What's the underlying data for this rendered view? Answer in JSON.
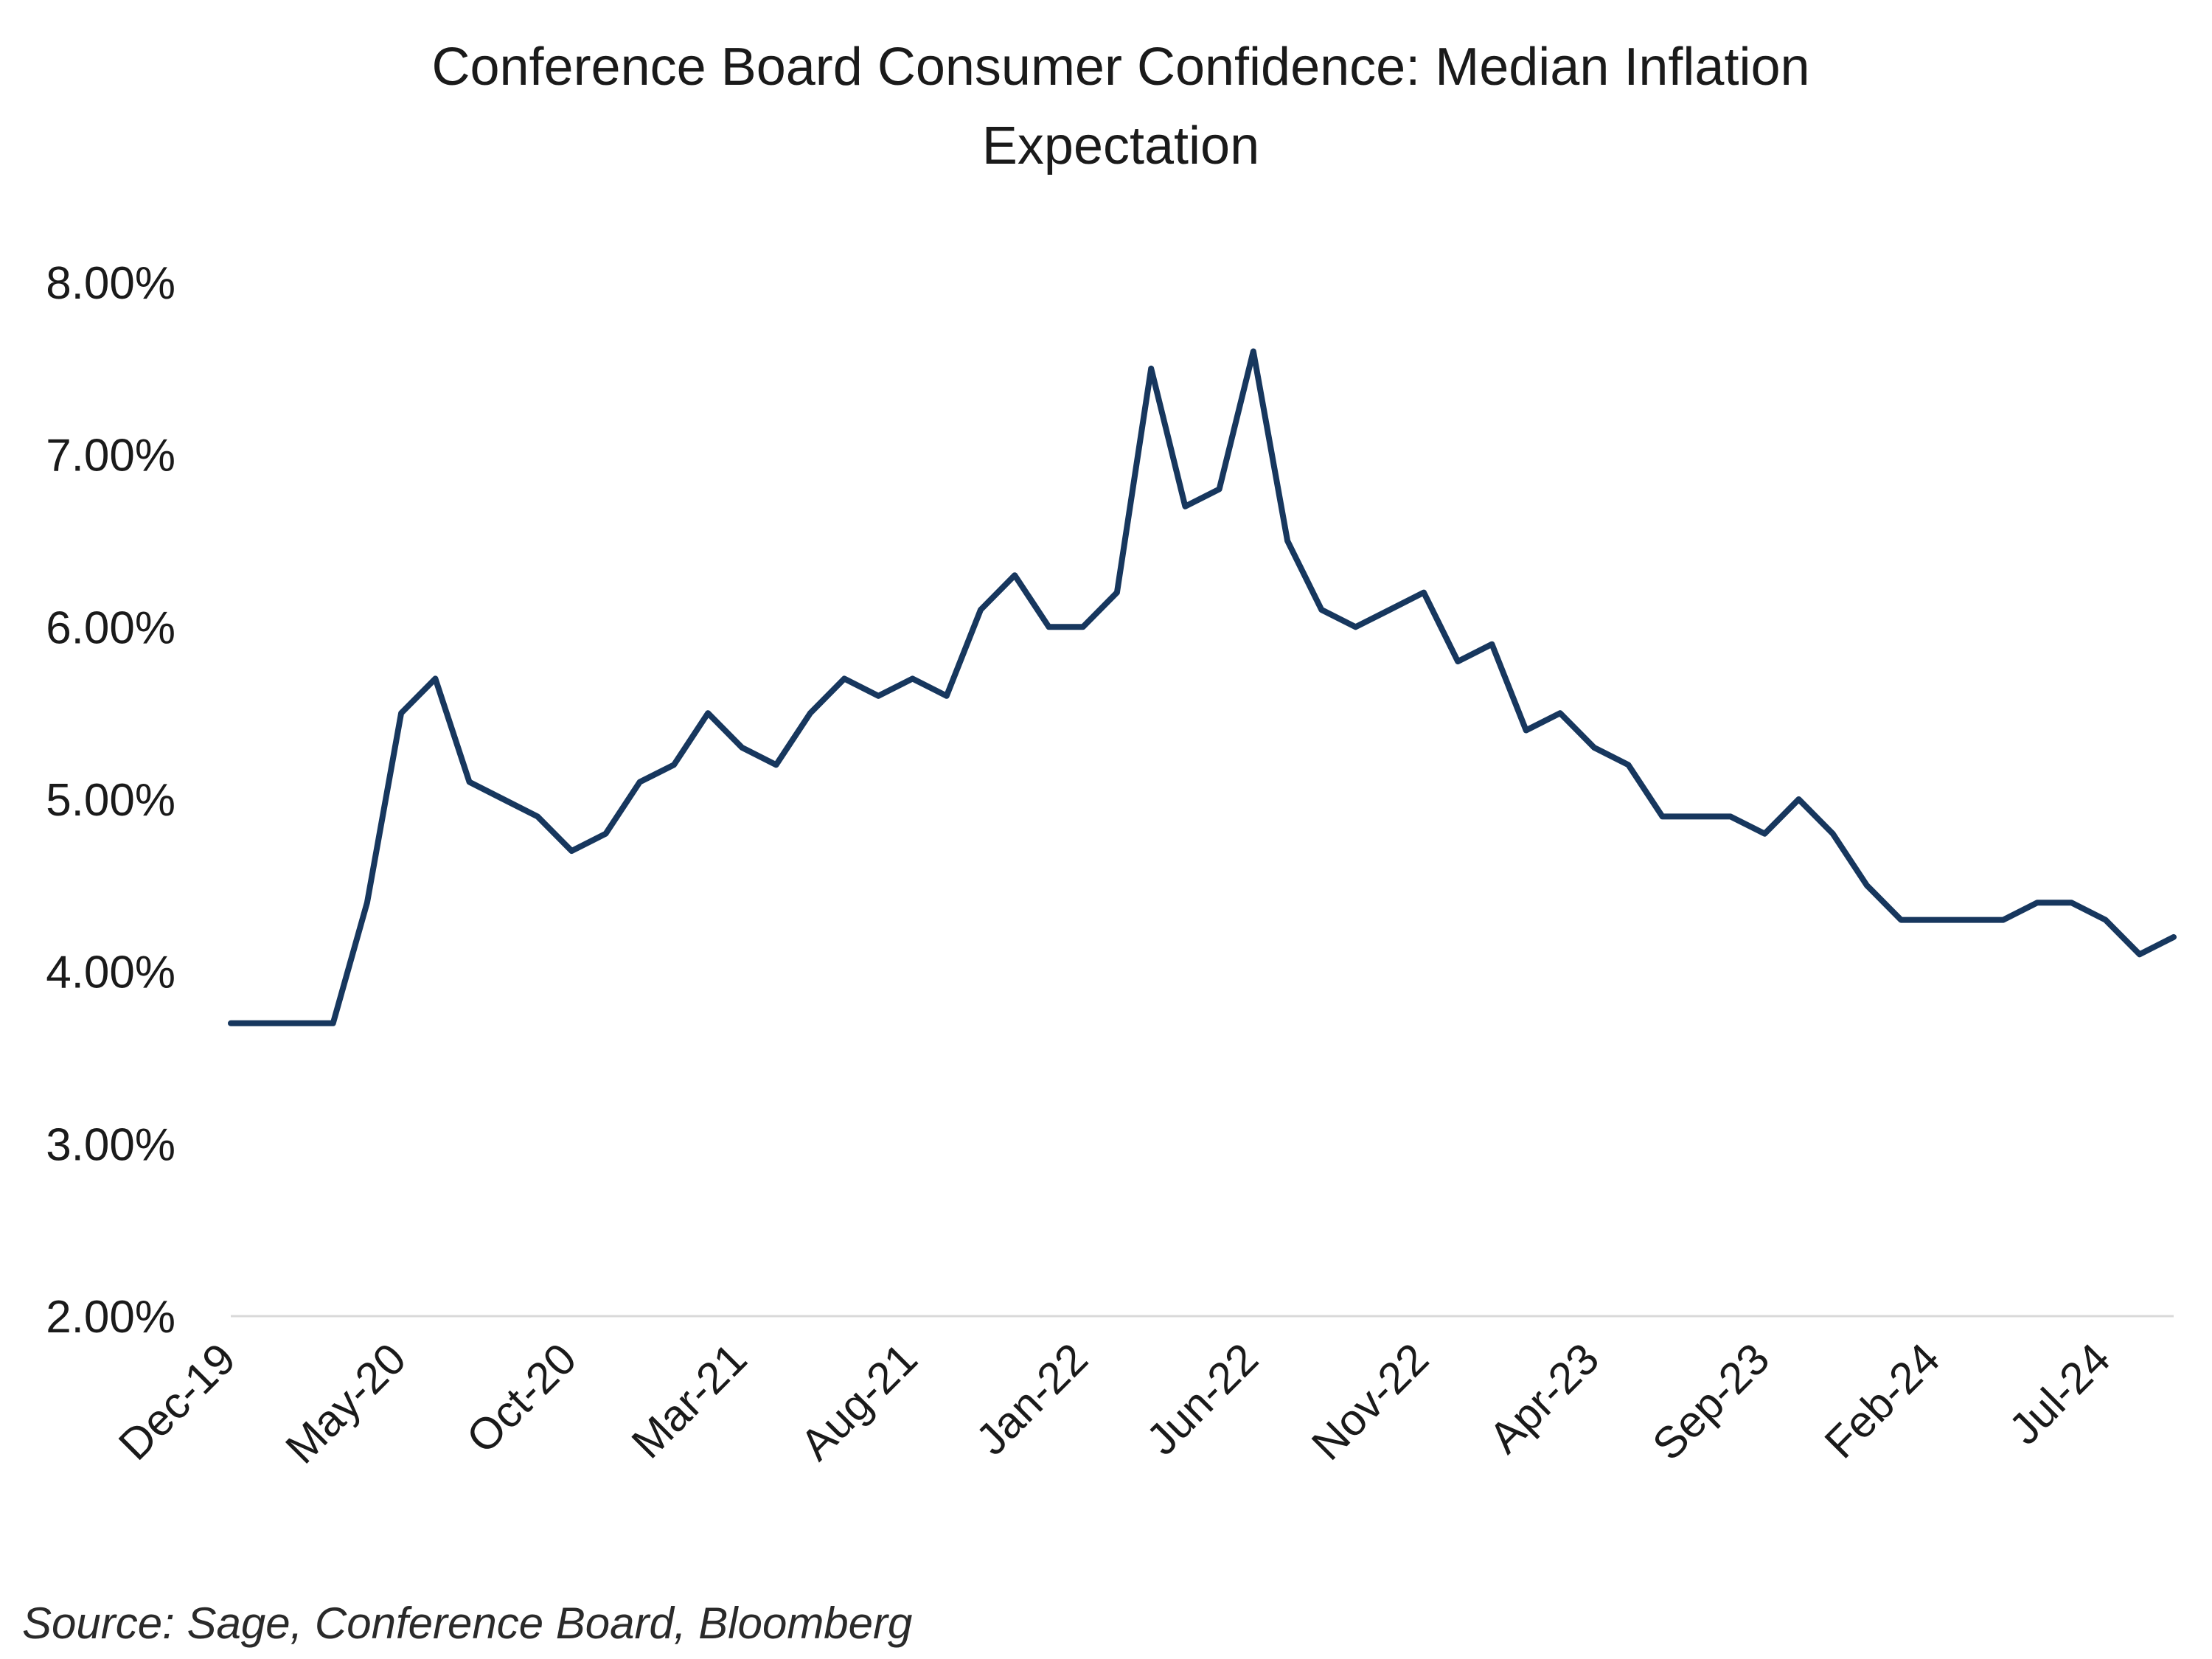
{
  "chart_data": {
    "type": "line",
    "title_line1": "Conference Board Consumer Confidence: Median Inflation",
    "title_line2": "Expectation",
    "source": "Source: Sage, Conference Board, Bloomberg",
    "ylim": [
      2.0,
      8.0
    ],
    "y_ticks": [
      "2.00%",
      "3.00%",
      "4.00%",
      "5.00%",
      "6.00%",
      "7.00%",
      "8.00%"
    ],
    "x_tick_labels": [
      "Dec-19",
      "May-20",
      "Oct-20",
      "Mar-21",
      "Aug-21",
      "Jan-22",
      "Jun-22",
      "Nov-22",
      "Apr-23",
      "Sep-23",
      "Feb-24",
      "Jul-24"
    ],
    "grid": false,
    "legend": "none",
    "line_color": "#17375e",
    "series": [
      {
        "values": [
          3.7,
          3.7,
          3.7,
          3.7,
          4.4,
          5.5,
          5.7,
          5.1,
          5.0,
          4.9,
          4.7,
          4.8,
          5.1,
          5.2,
          5.5,
          5.3,
          5.2,
          5.5,
          5.7,
          5.6,
          5.7,
          5.6,
          6.1,
          6.3,
          6.0,
          6.0,
          6.2,
          7.5,
          6.7,
          6.8,
          7.6,
          6.5,
          6.1,
          6.0,
          6.1,
          6.2,
          5.8,
          5.9,
          5.4,
          5.5,
          5.3,
          5.2,
          4.9,
          4.9,
          4.9,
          4.8,
          5.0,
          4.8,
          4.5,
          4.3,
          4.3,
          4.3,
          4.3,
          4.4,
          4.4,
          4.3,
          4.1,
          4.2
        ]
      }
    ]
  }
}
